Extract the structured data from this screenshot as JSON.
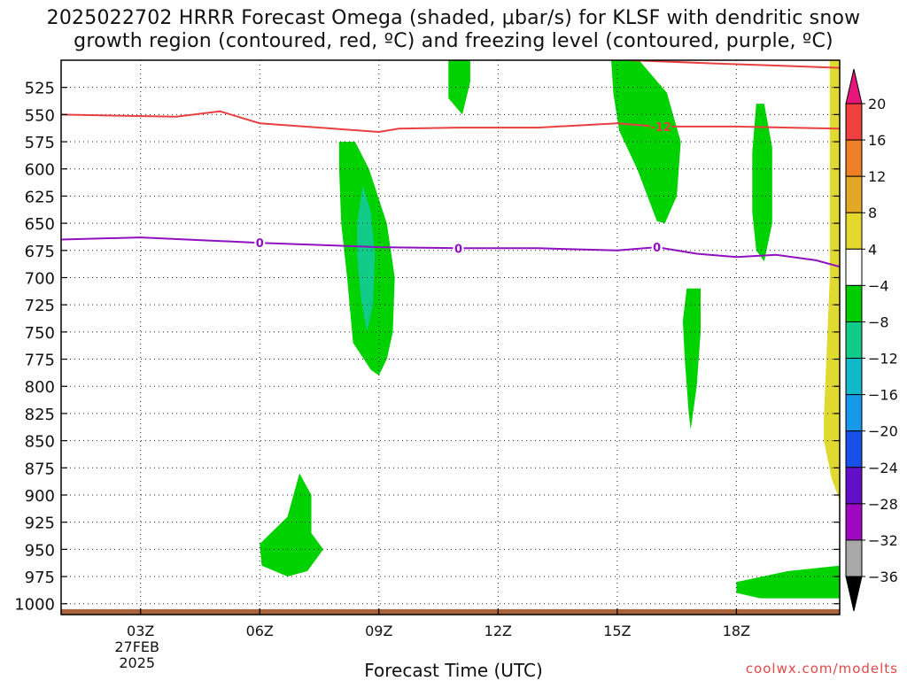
{
  "title_line1": "2025022702 HRRR Forecast Omega (shaded, μbar/s) for KLSF with dendritic snow",
  "title_line2": "growth region (contoured, red, ºC) and freezing level (contoured, purple, ºC)",
  "credit": "coolwx.com/modelts",
  "chart_data": {
    "type": "time-height contour",
    "xlabel": "Forecast Time (UTC)",
    "x_range_hours": [
      1,
      20.6
    ],
    "x_ticks": [
      {
        "hour": 3,
        "label": "03Z",
        "sublabels": [
          "27FEB",
          "2025"
        ]
      },
      {
        "hour": 6,
        "label": "06Z",
        "sublabels": []
      },
      {
        "hour": 9,
        "label": "09Z",
        "sublabels": []
      },
      {
        "hour": 12,
        "label": "12Z",
        "sublabels": []
      },
      {
        "hour": 15,
        "label": "15Z",
        "sublabels": []
      },
      {
        "hour": 18,
        "label": "18Z",
        "sublabels": []
      }
    ],
    "y_range_hpa": [
      1010,
      500
    ],
    "y_ticks": [
      "525",
      "550",
      "575",
      "600",
      "625",
      "650",
      "675",
      "700",
      "725",
      "750",
      "775",
      "800",
      "825",
      "850",
      "875",
      "900",
      "925",
      "950",
      "975",
      "1000"
    ],
    "grid": true,
    "colorbar": {
      "levels": [
        "20",
        "16",
        "12",
        "8",
        "4",
        "−4",
        "−8",
        "−12",
        "−16",
        "−20",
        "−24",
        "−28",
        "−32",
        "−36"
      ],
      "top_triangle_color": "#e8157a",
      "bottom_triangle_color": "#000000",
      "segment_colors": [
        "#f04040",
        "#ee7f27",
        "#e3a826",
        "#e4d82c",
        "#ffffff",
        "#00cc00",
        "#11cc88",
        "#10b8c8",
        "#1898e8",
        "#1850e8",
        "#6410c8",
        "#a008c0",
        "#a8a8a8"
      ]
    },
    "omega_regions": [
      {
        "name": "upward-motion-09z",
        "fill": "#00d200",
        "points": [
          [
            8.0,
            575
          ],
          [
            8.4,
            575
          ],
          [
            8.75,
            600
          ],
          [
            9.2,
            650
          ],
          [
            9.4,
            700
          ],
          [
            9.35,
            750
          ],
          [
            9.2,
            775
          ],
          [
            9.0,
            790
          ],
          [
            8.8,
            785
          ],
          [
            8.35,
            760
          ],
          [
            8.2,
            700
          ],
          [
            8.05,
            650
          ],
          [
            8.0,
            600
          ]
        ]
      },
      {
        "name": "strong-upward-core-09z",
        "fill": "#11cc88",
        "points": [
          [
            8.6,
            615
          ],
          [
            8.8,
            640
          ],
          [
            8.9,
            680
          ],
          [
            8.85,
            725
          ],
          [
            8.7,
            750
          ],
          [
            8.55,
            720
          ],
          [
            8.45,
            680
          ],
          [
            8.45,
            650
          ]
        ]
      },
      {
        "name": "upward-motion-1030z",
        "fill": "#00d200",
        "points": [
          [
            10.75,
            500
          ],
          [
            11.3,
            500
          ],
          [
            11.3,
            520
          ],
          [
            11.2,
            535
          ],
          [
            11.1,
            550
          ],
          [
            10.75,
            535
          ]
        ]
      },
      {
        "name": "upward-motion-1530z",
        "fill": "#00d200",
        "points": [
          [
            14.85,
            500
          ],
          [
            15.55,
            500
          ],
          [
            16.25,
            530
          ],
          [
            16.6,
            575
          ],
          [
            16.5,
            625
          ],
          [
            16.2,
            650
          ],
          [
            16.0,
            648
          ],
          [
            15.5,
            600
          ],
          [
            15.05,
            565
          ],
          [
            14.9,
            530
          ]
        ]
      },
      {
        "name": "upward-motion-1830z",
        "fill": "#00d200",
        "points": [
          [
            18.5,
            540
          ],
          [
            18.7,
            540
          ],
          [
            18.9,
            580
          ],
          [
            18.9,
            650
          ],
          [
            18.7,
            685
          ],
          [
            18.5,
            675
          ],
          [
            18.4,
            640
          ],
          [
            18.4,
            585
          ]
        ]
      },
      {
        "name": "upward-motion-17z-mid",
        "fill": "#00d200",
        "points": [
          [
            16.75,
            710
          ],
          [
            17.1,
            710
          ],
          [
            17.1,
            750
          ],
          [
            17.0,
            800
          ],
          [
            16.85,
            840
          ],
          [
            16.8,
            825
          ],
          [
            16.7,
            775
          ],
          [
            16.65,
            740
          ]
        ]
      },
      {
        "name": "upward-motion-07z-low",
        "fill": "#00d200",
        "points": [
          [
            6.0,
            945
          ],
          [
            6.7,
            920
          ],
          [
            7.0,
            880
          ],
          [
            7.3,
            900
          ],
          [
            7.3,
            935
          ],
          [
            7.6,
            950
          ],
          [
            7.2,
            970
          ],
          [
            6.7,
            975
          ],
          [
            6.05,
            965
          ]
        ]
      },
      {
        "name": "upward-motion-19z-sfc",
        "fill": "#00d200",
        "points": [
          [
            18.0,
            980
          ],
          [
            19.3,
            970
          ],
          [
            20.6,
            965
          ],
          [
            20.6,
            995
          ],
          [
            18.6,
            995
          ],
          [
            18.0,
            990
          ]
        ]
      },
      {
        "name": "downward-motion-right-edge",
        "fill": "#e0da30",
        "points": [
          [
            20.35,
            500
          ],
          [
            20.6,
            500
          ],
          [
            20.6,
            905
          ],
          [
            20.4,
            885
          ],
          [
            20.2,
            850
          ],
          [
            20.2,
            830
          ],
          [
            20.35,
            700
          ]
        ]
      }
    ],
    "dgz_contour": {
      "label": "-12",
      "label_hour": 16.1,
      "color": "#e84040",
      "upper_edge": [
        [
          15.3,
          500
        ],
        [
          17.5,
          503
        ],
        [
          20.6,
          507
        ]
      ],
      "lower_edge": [
        [
          1,
          550
        ],
        [
          3.9,
          552
        ],
        [
          5,
          547
        ],
        [
          6,
          558
        ],
        [
          9,
          566
        ],
        [
          9.5,
          563
        ],
        [
          11,
          562
        ],
        [
          13,
          562
        ],
        [
          15,
          558
        ],
        [
          16,
          561
        ],
        [
          18,
          561
        ],
        [
          20.6,
          563
        ]
      ]
    },
    "freezing_level_contour": {
      "label": "0",
      "label_positions": [
        6,
        11,
        16
      ],
      "color": "#9010c0",
      "points": [
        [
          1,
          665
        ],
        [
          3,
          663
        ],
        [
          6,
          668
        ],
        [
          9,
          672
        ],
        [
          11,
          673
        ],
        [
          13,
          673
        ],
        [
          15,
          675
        ],
        [
          16,
          672
        ],
        [
          17,
          678
        ],
        [
          18,
          681
        ],
        [
          19,
          679
        ],
        [
          20,
          684
        ],
        [
          20.6,
          690
        ]
      ]
    },
    "terrain": {
      "color": "#a8643a",
      "top_hpa": 1005
    }
  }
}
